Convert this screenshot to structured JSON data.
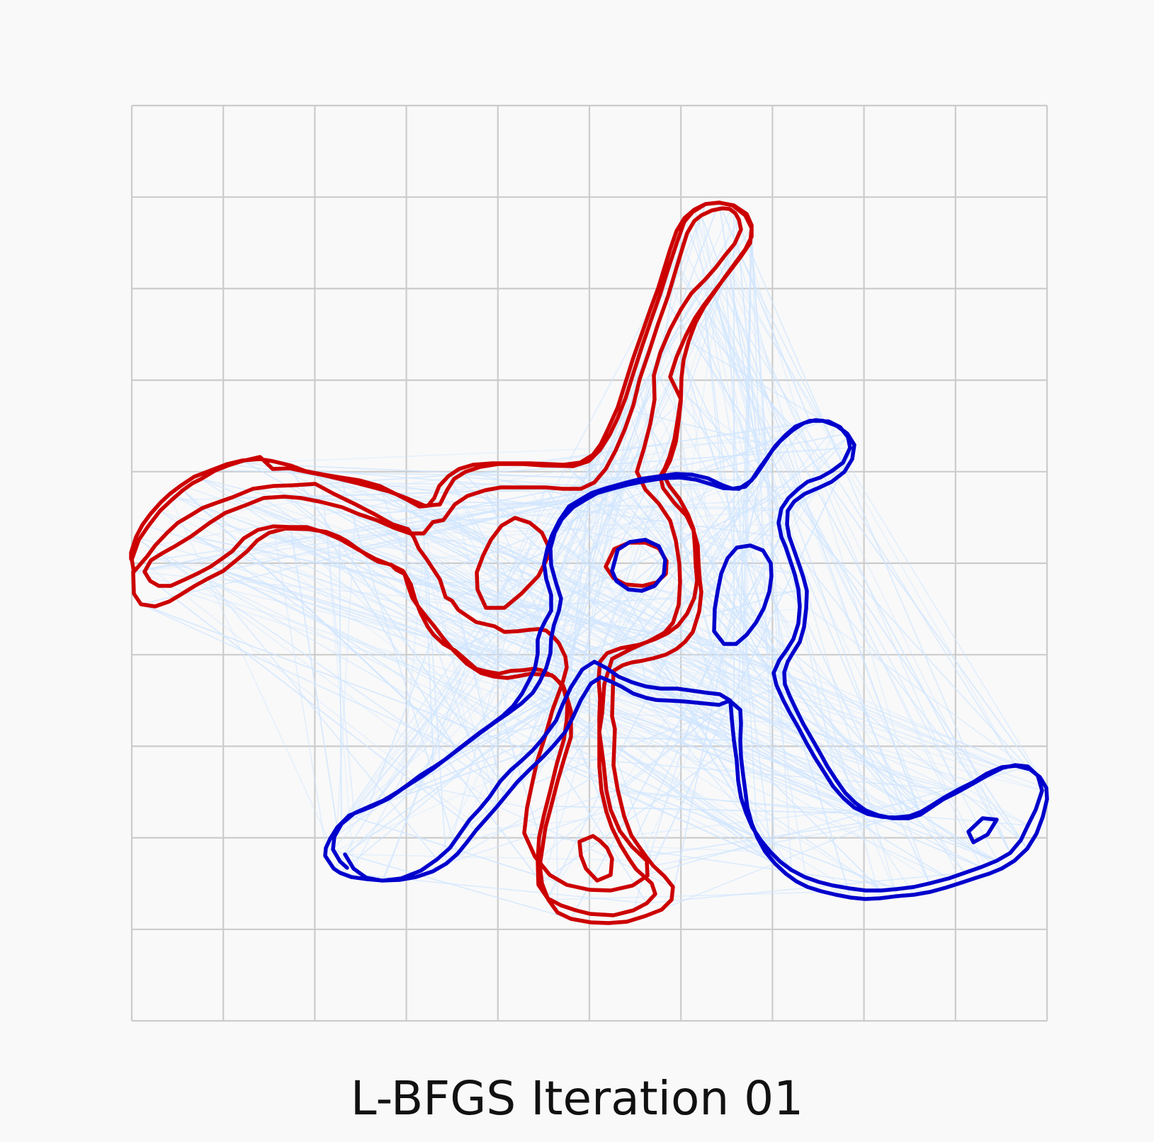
{
  "figure": {
    "title": "L-BFGS Iteration 01",
    "background": "#f9f9f9",
    "grid": {
      "shown": true,
      "color": "#cccccc",
      "divisions": 10
    },
    "colors": {
      "source_contour": "#cc0000",
      "target_contour": "#0000cc",
      "correspondence_lines": "#cfe5ff"
    },
    "legend": "none",
    "axes_ticks": "none"
  }
}
